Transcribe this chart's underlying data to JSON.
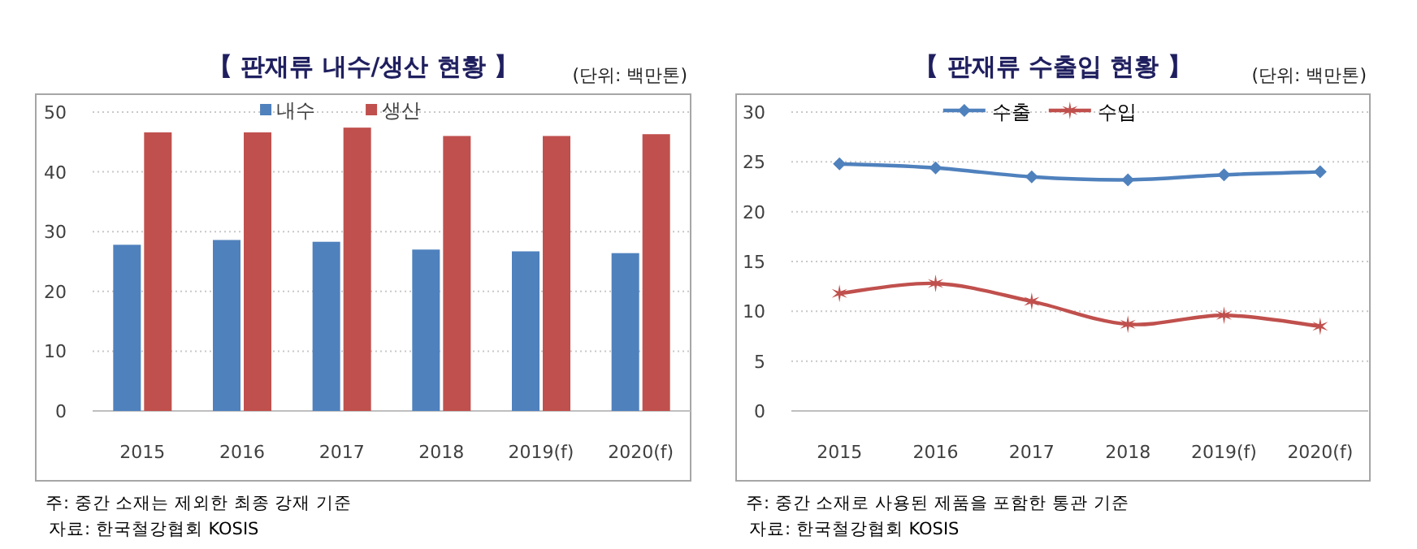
{
  "chart_data": [
    {
      "type": "bar",
      "title": "【 판재류 내수/생산 현황 】",
      "categories": [
        "2015",
        "2016",
        "2017",
        "2018",
        "2019(f)",
        "2020(f)"
      ],
      "series": [
        {
          "name": "내수",
          "color": "#4f81bd",
          "values": [
            27.8,
            28.6,
            28.3,
            27.0,
            26.7,
            26.4
          ]
        },
        {
          "name": "생산",
          "color": "#c0504d",
          "values": [
            46.6,
            46.6,
            47.4,
            46.0,
            46.0,
            46.3
          ]
        }
      ],
      "ylim": [
        0,
        50
      ],
      "yticks": [
        0,
        10,
        20,
        30,
        40,
        50
      ],
      "grid": "y",
      "legend": "top",
      "annotations": [
        "(단위: 백만톤)",
        "주: 중간 소재는 제외한 최종 강재 기준",
        "자료: 한국철강협회 KOSIS"
      ]
    },
    {
      "type": "line",
      "title": "【 판재류 수출입 현황 】",
      "categories": [
        "2015",
        "2016",
        "2017",
        "2018",
        "2019(f)",
        "2020(f)"
      ],
      "series": [
        {
          "name": "수출",
          "color": "#4f81bd",
          "marker": "diamond",
          "values": [
            24.8,
            24.4,
            23.5,
            23.2,
            23.7,
            24.0
          ]
        },
        {
          "name": "수입",
          "color": "#c0504d",
          "marker": "cross",
          "values": [
            11.8,
            12.8,
            11.0,
            8.7,
            9.6,
            8.5
          ]
        }
      ],
      "ylim": [
        0,
        30
      ],
      "yticks": [
        0,
        5,
        10,
        15,
        20,
        25,
        30
      ],
      "grid": "y",
      "legend": "top",
      "line_style": "solid",
      "annotations": [
        "(단위: 백만톤)",
        "주: 중간 소재로 사용된 제품을 포함한 통관 기준",
        "자료: 한국철강협회 KOSIS"
      ]
    }
  ]
}
